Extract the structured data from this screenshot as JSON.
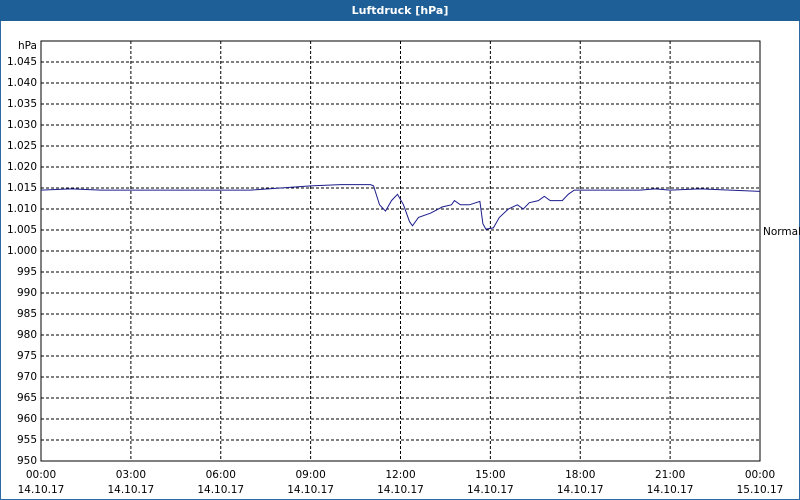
{
  "chart_data": {
    "type": "line",
    "title": "Luftdruck [hPa]",
    "y_label": "hPa",
    "xlim": [
      0,
      24
    ],
    "ylim": [
      950,
      1050
    ],
    "grid": true,
    "xticks": [
      {
        "value": 0,
        "label": "00:00",
        "date": "14.10.17"
      },
      {
        "value": 3,
        "label": "03:00",
        "date": "14.10.17"
      },
      {
        "value": 6,
        "label": "06:00",
        "date": "14.10.17"
      },
      {
        "value": 9,
        "label": "09:00",
        "date": "14.10.17"
      },
      {
        "value": 12,
        "label": "12:00",
        "date": "14.10.17"
      },
      {
        "value": 15,
        "label": "15:00",
        "date": "14.10.17"
      },
      {
        "value": 18,
        "label": "18:00",
        "date": "14.10.17"
      },
      {
        "value": 21,
        "label": "21:00",
        "date": "14.10.17"
      },
      {
        "value": 24,
        "label": "00:00",
        "date": "15.10.17"
      }
    ],
    "yticks": [
      950,
      955,
      960,
      965,
      970,
      975,
      980,
      985,
      990,
      995,
      {
        "value": 1000,
        "label": "1.000"
      },
      {
        "value": 1005,
        "label": "1.005"
      },
      {
        "value": 1010,
        "label": "1.010"
      },
      {
        "value": 1015,
        "label": "1.015"
      },
      {
        "value": 1020,
        "label": "1.020"
      },
      {
        "value": 1025,
        "label": "1.025"
      },
      {
        "value": 1030,
        "label": "1.030"
      },
      {
        "value": 1035,
        "label": "1.035"
      },
      {
        "value": 1040,
        "label": "1.040"
      },
      {
        "value": 1045,
        "label": "1.045"
      }
    ],
    "annotation": {
      "text": "Normal",
      "value": 1004.5
    },
    "series": [
      {
        "color": "#1c1c8c",
        "x": [
          0,
          1,
          2,
          4,
          6,
          7,
          8,
          9,
          10,
          11,
          11.1,
          11.3,
          11.5,
          11.7,
          11.9,
          12.1,
          12.3,
          12.4,
          12.6,
          13,
          13.4,
          13.7,
          13.8,
          14,
          14.3,
          14.65,
          14.75,
          14.85,
          15.1,
          15.3,
          15.6,
          15.9,
          16.1,
          16.3,
          16.6,
          16.8,
          17,
          17.4,
          17.6,
          17.8,
          18.5,
          19,
          20,
          20.5,
          21,
          22,
          23,
          24
        ],
        "values": [
          1014.5,
          1014.8,
          1014.5,
          1014.5,
          1014.5,
          1014.5,
          1015,
          1015.5,
          1015.8,
          1015.8,
          1015.5,
          1011,
          1009.5,
          1012,
          1013.5,
          1011,
          1007,
          1006,
          1008,
          1009,
          1010.5,
          1011,
          1012,
          1011,
          1011,
          1011.8,
          1006.5,
          1005.2,
          1005.5,
          1008,
          1010,
          1011,
          1010,
          1011.5,
          1012,
          1013,
          1012,
          1012,
          1013.5,
          1014.5,
          1014.5,
          1014.5,
          1014.5,
          1014.8,
          1014.5,
          1014.8,
          1014.5,
          1014.2
        ]
      }
    ]
  }
}
